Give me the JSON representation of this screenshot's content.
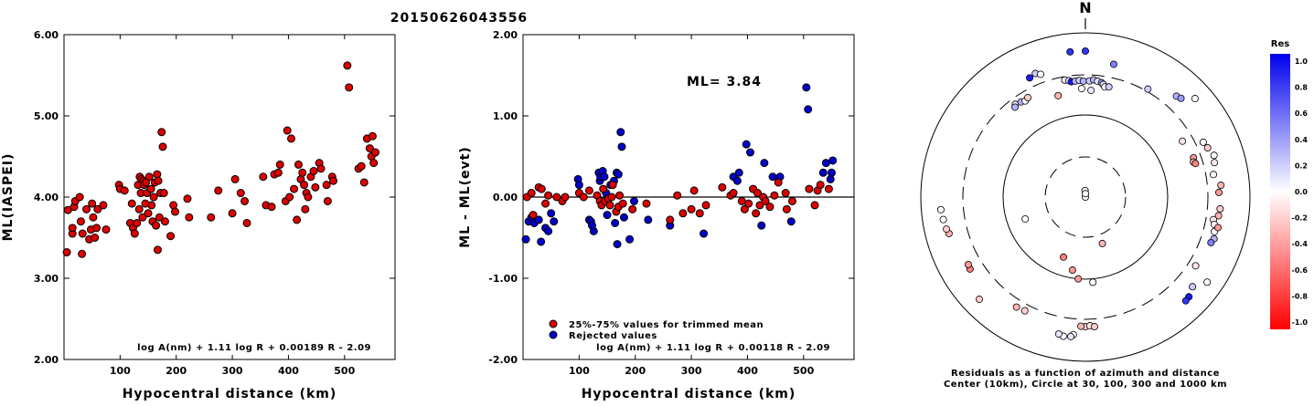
{
  "title": "20150626043556",
  "chart_data": [
    {
      "type": "scatter",
      "xlabel": "Hypocentral distance (km)",
      "ylabel": "ML(IASPEI)",
      "xlim": [
        0,
        590
      ],
      "ylim": [
        2.0,
        6.0
      ],
      "x_ticks": [
        100,
        200,
        300,
        400,
        500
      ],
      "y_ticks": [
        "2.00",
        "3.00",
        "4.00",
        "5.00",
        "6.00"
      ],
      "formula": "log A(nm) + 1.11 log R + 0.00189 R - 2.09",
      "points": [
        [
          5,
          3.32
        ],
        [
          7,
          3.84
        ],
        [
          15,
          3.55
        ],
        [
          15,
          3.62
        ],
        [
          18,
          3.88
        ],
        [
          20,
          3.95
        ],
        [
          28,
          4.0
        ],
        [
          30,
          3.7
        ],
        [
          32,
          3.3
        ],
        [
          33,
          3.55
        ],
        [
          40,
          3.85
        ],
        [
          45,
          3.48
        ],
        [
          48,
          3.6
        ],
        [
          50,
          3.92
        ],
        [
          52,
          3.75
        ],
        [
          55,
          3.5
        ],
        [
          58,
          3.62
        ],
        [
          60,
          3.85
        ],
        [
          70,
          3.9
        ],
        [
          75,
          3.6
        ],
        [
          98,
          4.15
        ],
        [
          100,
          4.1
        ],
        [
          108,
          4.08
        ],
        [
          118,
          3.68
        ],
        [
          121,
          3.92
        ],
        [
          123,
          3.62
        ],
        [
          126,
          3.55
        ],
        [
          130,
          3.68
        ],
        [
          132,
          4.15
        ],
        [
          134,
          3.85
        ],
        [
          135,
          4.25
        ],
        [
          137,
          4.05
        ],
        [
          138,
          4.22
        ],
        [
          140,
          3.75
        ],
        [
          142,
          4.2
        ],
        [
          143,
          4.15
        ],
        [
          145,
          3.92
        ],
        [
          146,
          4.18
        ],
        [
          148,
          4.05
        ],
        [
          150,
          3.8
        ],
        [
          152,
          4.25
        ],
        [
          155,
          4.1
        ],
        [
          156,
          3.9
        ],
        [
          158,
          3.7
        ],
        [
          160,
          4.0
        ],
        [
          162,
          4.18
        ],
        [
          164,
          3.65
        ],
        [
          166,
          4.28
        ],
        [
          167,
          3.35
        ],
        [
          168,
          4.2
        ],
        [
          170,
          3.75
        ],
        [
          172,
          4.05
        ],
        [
          174,
          4.8
        ],
        [
          176,
          4.62
        ],
        [
          178,
          4.05
        ],
        [
          180,
          3.7
        ],
        [
          190,
          3.52
        ],
        [
          195,
          3.9
        ],
        [
          198,
          3.82
        ],
        [
          220,
          3.98
        ],
        [
          223,
          3.75
        ],
        [
          262,
          3.75
        ],
        [
          275,
          4.08
        ],
        [
          300,
          3.8
        ],
        [
          305,
          4.22
        ],
        [
          315,
          4.05
        ],
        [
          322,
          3.95
        ],
        [
          326,
          3.68
        ],
        [
          355,
          4.25
        ],
        [
          360,
          3.9
        ],
        [
          370,
          3.88
        ],
        [
          375,
          4.28
        ],
        [
          382,
          4.3
        ],
        [
          385,
          4.4
        ],
        [
          395,
          3.95
        ],
        [
          398,
          4.82
        ],
        [
          402,
          4.0
        ],
        [
          405,
          4.72
        ],
        [
          410,
          4.1
        ],
        [
          415,
          3.72
        ],
        [
          418,
          4.4
        ],
        [
          422,
          4.22
        ],
        [
          425,
          4.3
        ],
        [
          428,
          4.15
        ],
        [
          430,
          3.85
        ],
        [
          432,
          4.05
        ],
        [
          435,
          4.0
        ],
        [
          440,
          4.25
        ],
        [
          445,
          4.32
        ],
        [
          448,
          4.12
        ],
        [
          455,
          4.42
        ],
        [
          458,
          4.35
        ],
        [
          468,
          4.15
        ],
        [
          470,
          3.95
        ],
        [
          478,
          4.25
        ],
        [
          480,
          4.2
        ],
        [
          505,
          5.62
        ],
        [
          508,
          5.35
        ],
        [
          525,
          4.35
        ],
        [
          530,
          4.38
        ],
        [
          535,
          4.18
        ],
        [
          540,
          4.72
        ],
        [
          545,
          4.6
        ],
        [
          548,
          4.5
        ],
        [
          550,
          4.75
        ],
        [
          552,
          4.42
        ],
        [
          555,
          4.55
        ]
      ]
    },
    {
      "type": "scatter",
      "xlabel": "Hypocentral distance (km)",
      "ylabel": "ML - ML(evt)",
      "xlim": [
        0,
        590
      ],
      "ylim": [
        -2.0,
        2.0
      ],
      "x_ticks": [
        100,
        200,
        300,
        400,
        500
      ],
      "y_ticks": [
        "-2.00",
        "-1.00",
        "0.00",
        "1.00",
        "2.00"
      ],
      "ml_label": "ML= 3.84",
      "reference_line": 0,
      "formula": "log A(nm) + 1.11 log R + 0.00118 R - 2.09",
      "legend": [
        {
          "label": "25%-75% values for trimmed mean",
          "color": "#dd0000"
        },
        {
          "label": "Rejected values",
          "color": "#0000cc"
        }
      ],
      "points_kept": [
        [
          7,
          0.0
        ],
        [
          15,
          0.05
        ],
        [
          18,
          -0.22
        ],
        [
          28,
          0.12
        ],
        [
          33,
          0.1
        ],
        [
          40,
          -0.08
        ],
        [
          45,
          0.02
        ],
        [
          60,
          0.0
        ],
        [
          70,
          -0.05
        ],
        [
          75,
          0.0
        ],
        [
          100,
          0.05
        ],
        [
          108,
          0.0
        ],
        [
          118,
          0.08
        ],
        [
          132,
          0.02
        ],
        [
          137,
          -0.05
        ],
        [
          140,
          -0.1
        ],
        [
          143,
          0.1
        ],
        [
          146,
          -0.05
        ],
        [
          152,
          -0.02
        ],
        [
          155,
          -0.1
        ],
        [
          158,
          0.0
        ],
        [
          160,
          0.15
        ],
        [
          166,
          -0.18
        ],
        [
          170,
          -0.12
        ],
        [
          172,
          0.02
        ],
        [
          178,
          -0.08
        ],
        [
          195,
          -0.15
        ],
        [
          220,
          -0.08
        ],
        [
          262,
          -0.28
        ],
        [
          275,
          0.02
        ],
        [
          285,
          -0.2
        ],
        [
          300,
          -0.15
        ],
        [
          305,
          0.08
        ],
        [
          315,
          -0.2
        ],
        [
          326,
          -0.1
        ],
        [
          355,
          0.12
        ],
        [
          370,
          0.02
        ],
        [
          375,
          0.05
        ],
        [
          390,
          -0.05
        ],
        [
          395,
          -0.15
        ],
        [
          402,
          -0.08
        ],
        [
          410,
          0.1
        ],
        [
          415,
          -0.2
        ],
        [
          418,
          0.05
        ],
        [
          422,
          -0.1
        ],
        [
          428,
          0.0
        ],
        [
          432,
          -0.05
        ],
        [
          440,
          -0.12
        ],
        [
          448,
          0.02
        ],
        [
          455,
          0.18
        ],
        [
          468,
          0.05
        ],
        [
          470,
          -0.15
        ],
        [
          480,
          -0.05
        ],
        [
          510,
          0.1
        ],
        [
          520,
          -0.1
        ],
        [
          525,
          0.08
        ],
        [
          530,
          0.15
        ],
        [
          545,
          0.1
        ]
      ],
      "points_rejected": [
        [
          5,
          -0.52
        ],
        [
          10,
          -0.3
        ],
        [
          15,
          -0.25
        ],
        [
          20,
          -0.32
        ],
        [
          28,
          -0.28
        ],
        [
          32,
          -0.55
        ],
        [
          40,
          -0.38
        ],
        [
          45,
          -0.42
        ],
        [
          50,
          -0.2
        ],
        [
          55,
          -0.3
        ],
        [
          98,
          0.22
        ],
        [
          100,
          0.15
        ],
        [
          118,
          -0.28
        ],
        [
          121,
          -0.3
        ],
        [
          123,
          -0.35
        ],
        [
          126,
          -0.42
        ],
        [
          135,
          0.3
        ],
        [
          137,
          0.2
        ],
        [
          138,
          0.25
        ],
        [
          142,
          0.32
        ],
        [
          145,
          0.25
        ],
        [
          148,
          0.05
        ],
        [
          150,
          -0.22
        ],
        [
          156,
          0.15
        ],
        [
          162,
          0.2
        ],
        [
          164,
          -0.32
        ],
        [
          167,
          0.3
        ],
        [
          168,
          -0.58
        ],
        [
          170,
          0.28
        ],
        [
          174,
          0.8
        ],
        [
          176,
          0.62
        ],
        [
          180,
          -0.25
        ],
        [
          190,
          -0.52
        ],
        [
          198,
          -0.05
        ],
        [
          223,
          -0.28
        ],
        [
          262,
          -0.35
        ],
        [
          322,
          -0.45
        ],
        [
          375,
          0.25
        ],
        [
          382,
          0.2
        ],
        [
          385,
          0.3
        ],
        [
          398,
          0.65
        ],
        [
          405,
          0.55
        ],
        [
          425,
          -0.35
        ],
        [
          430,
          0.42
        ],
        [
          445,
          0.25
        ],
        [
          458,
          0.25
        ],
        [
          478,
          -0.3
        ],
        [
          505,
          1.35
        ],
        [
          508,
          1.08
        ],
        [
          535,
          0.3
        ],
        [
          540,
          0.42
        ],
        [
          548,
          0.22
        ],
        [
          550,
          0.3
        ],
        [
          552,
          0.45
        ]
      ]
    },
    {
      "type": "scatter",
      "north_label": "N",
      "caption": [
        "Residuals as a function of azimuth and distance",
        "Center (10km), Circle at 30, 100, 300 and 1000 km"
      ],
      "colorbar": {
        "title": "Res",
        "ticks": [
          "1.0",
          "0.8",
          "0.6",
          "0.4",
          "0.2",
          "0.0",
          "-0.2",
          "-0.4",
          "-0.6",
          "-0.8",
          "-1.0"
        ]
      },
      "points_azimuth_distance_residual": [
        [
          0,
          10,
          0.0
        ],
        [
          357,
          12,
          0.0
        ],
        [
          2,
          11,
          0.0
        ],
        [
          345,
          190,
          -0.3
        ],
        [
          250,
          60,
          0.0
        ],
        [
          160,
          40,
          -0.3
        ],
        [
          200,
          60,
          -0.5
        ],
        [
          190,
          80,
          -0.4
        ],
        [
          185,
          100,
          -0.4
        ],
        [
          175,
          110,
          0.0
        ],
        [
          0,
          600,
          0.8
        ],
        [
          354,
          600,
          0.8
        ],
        [
          12,
          450,
          0.5
        ],
        [
          338,
          420,
          0.2
        ],
        [
          340,
          390,
          0.0
        ],
        [
          335,
          400,
          0.9
        ],
        [
          350,
          280,
          0.1
        ],
        [
          352,
          270,
          0.0
        ],
        [
          353,
          260,
          0.9
        ],
        [
          355,
          262,
          0.3
        ],
        [
          357,
          265,
          0.2
        ],
        [
          359,
          258,
          0.3
        ],
        [
          2,
          260,
          0.2
        ],
        [
          4,
          270,
          0.3
        ],
        [
          6,
          262,
          0.1
        ],
        [
          8,
          255,
          0.4
        ],
        [
          9,
          245,
          0.1
        ],
        [
          3,
          200,
          0.1
        ],
        [
          358,
          210,
          0.0
        ],
        [
          10,
          230,
          0.0
        ],
        [
          12,
          235,
          0.2
        ],
        [
          323,
          260,
          0.1
        ],
        [
          326,
          250,
          0.3
        ],
        [
          328,
          240,
          0.0
        ],
        [
          330,
          250,
          -0.2
        ],
        [
          322,
          245,
          0.3
        ],
        [
          30,
          330,
          0.2
        ],
        [
          42,
          450,
          0.3
        ],
        [
          44,
          470,
          0.4
        ],
        [
          48,
          620,
          0.0
        ],
        [
          60,
          230,
          -0.1
        ],
        [
          70,
          250,
          -0.4
        ],
        [
          72,
          240,
          -0.3
        ],
        [
          73,
          250,
          -0.5
        ],
        [
          65,
          380,
          0.0
        ],
        [
          68,
          400,
          -0.2
        ],
        [
          72,
          440,
          0.0
        ],
        [
          75,
          420,
          -0.1
        ],
        [
          80,
          380,
          0.0
        ],
        [
          85,
          450,
          -0.3
        ],
        [
          88,
          420,
          -0.4
        ],
        [
          95,
          440,
          -0.2
        ],
        [
          98,
          430,
          -0.3
        ],
        [
          100,
          380,
          -0.1
        ],
        [
          102,
          400,
          0.0
        ],
        [
          105,
          420,
          0.0
        ],
        [
          103,
          450,
          -0.4
        ],
        [
          108,
          440,
          0.3
        ],
        [
          110,
          420,
          0.5
        ],
        [
          122,
          380,
          -0.1
        ],
        [
          130,
          500,
          0.2
        ],
        [
          134,
          560,
          0.9
        ],
        [
          136,
          570,
          0.8
        ],
        [
          125,
          640,
          0.0
        ],
        [
          180,
          380,
          -0.2
        ],
        [
          178,
          370,
          -0.1
        ],
        [
          182,
          375,
          -0.3
        ],
        [
          176,
          382,
          -0.2
        ],
        [
          185,
          480,
          0.0
        ],
        [
          186,
          510,
          0.1
        ],
        [
          189,
          520,
          0.0
        ],
        [
          191,
          500,
          0.1
        ],
        [
          208,
          370,
          -0.2
        ],
        [
          212,
          380,
          -0.3
        ],
        [
          226,
          620,
          -0.2
        ],
        [
          238,
          450,
          -0.5
        ],
        [
          240,
          440,
          -0.4
        ],
        [
          255,
          520,
          -0.3
        ],
        [
          257,
          540,
          -0.2
        ],
        [
          261,
          560,
          0.0
        ],
        [
          265,
          580,
          0.0
        ]
      ]
    }
  ]
}
